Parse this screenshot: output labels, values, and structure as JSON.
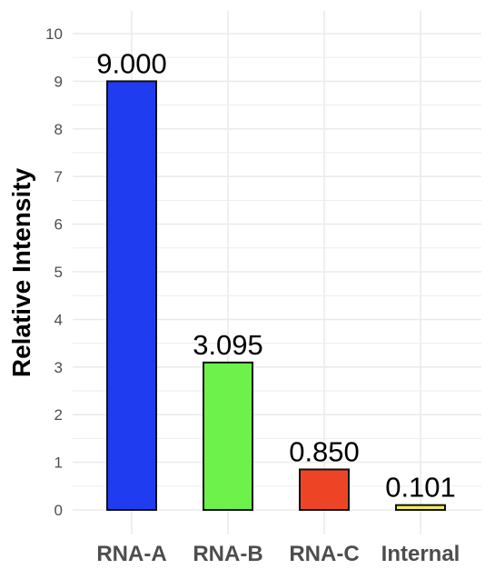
{
  "chart_data": {
    "type": "bar",
    "categories": [
      "RNA-A",
      "RNA-B",
      "RNA-C",
      "Internal"
    ],
    "values": [
      9.0,
      3.095,
      0.85,
      0.101
    ],
    "value_labels": [
      "9.000",
      "3.095",
      "0.850",
      "0.101"
    ],
    "bar_colors": [
      "#1f3cf0",
      "#6cf24a",
      "#ee4426",
      "#f2ee55"
    ],
    "bar_outline_color": "#111111",
    "title": "",
    "xlabel": "",
    "ylabel": "Relative Intensity",
    "ylim": [
      0,
      10
    ],
    "yticks": [
      0,
      1,
      2,
      3,
      4,
      5,
      6,
      7,
      8,
      9,
      10
    ],
    "ytick_labels": [
      "0",
      "1",
      "2",
      "3",
      "4",
      "5",
      "6",
      "7",
      "8",
      "9",
      "10"
    ],
    "grid": true,
    "grid_color": "#ebebeb",
    "legend": "none"
  }
}
